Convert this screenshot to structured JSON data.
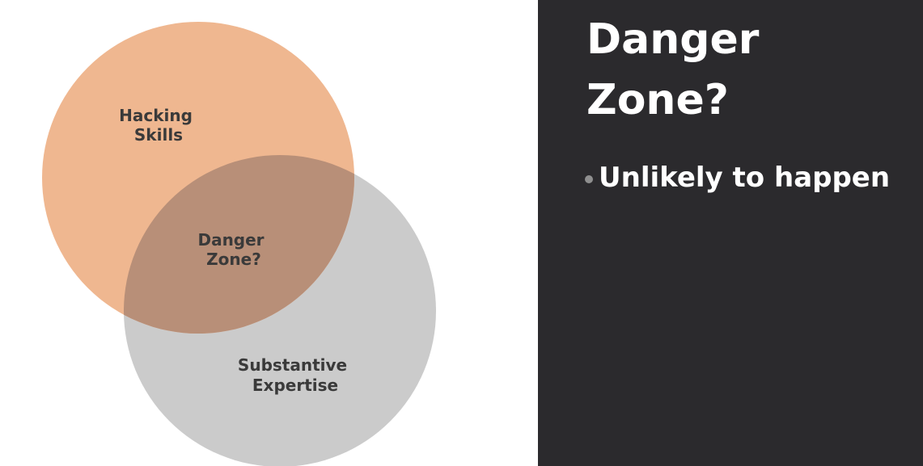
{
  "diagram": {
    "circles": [
      {
        "id": "hacking",
        "label_lines": [
          "Hacking",
          "Skills"
        ],
        "color": "#efb790"
      },
      {
        "id": "expertise",
        "label_lines": [
          "Substantive",
          "Expertise"
        ],
        "color": "#cbcbcb"
      }
    ],
    "overlap": {
      "label_lines": [
        "Danger",
        "Zone?"
      ],
      "color": "#b88f78"
    }
  },
  "panel": {
    "title_lines": [
      "Danger",
      "Zone?"
    ],
    "bullets": [
      "Unlikely to happen"
    ]
  },
  "colors": {
    "panel_background": "#2b2a2d",
    "bullet_dot": "#8f8f8f",
    "label_text": "#3a3a3a"
  }
}
